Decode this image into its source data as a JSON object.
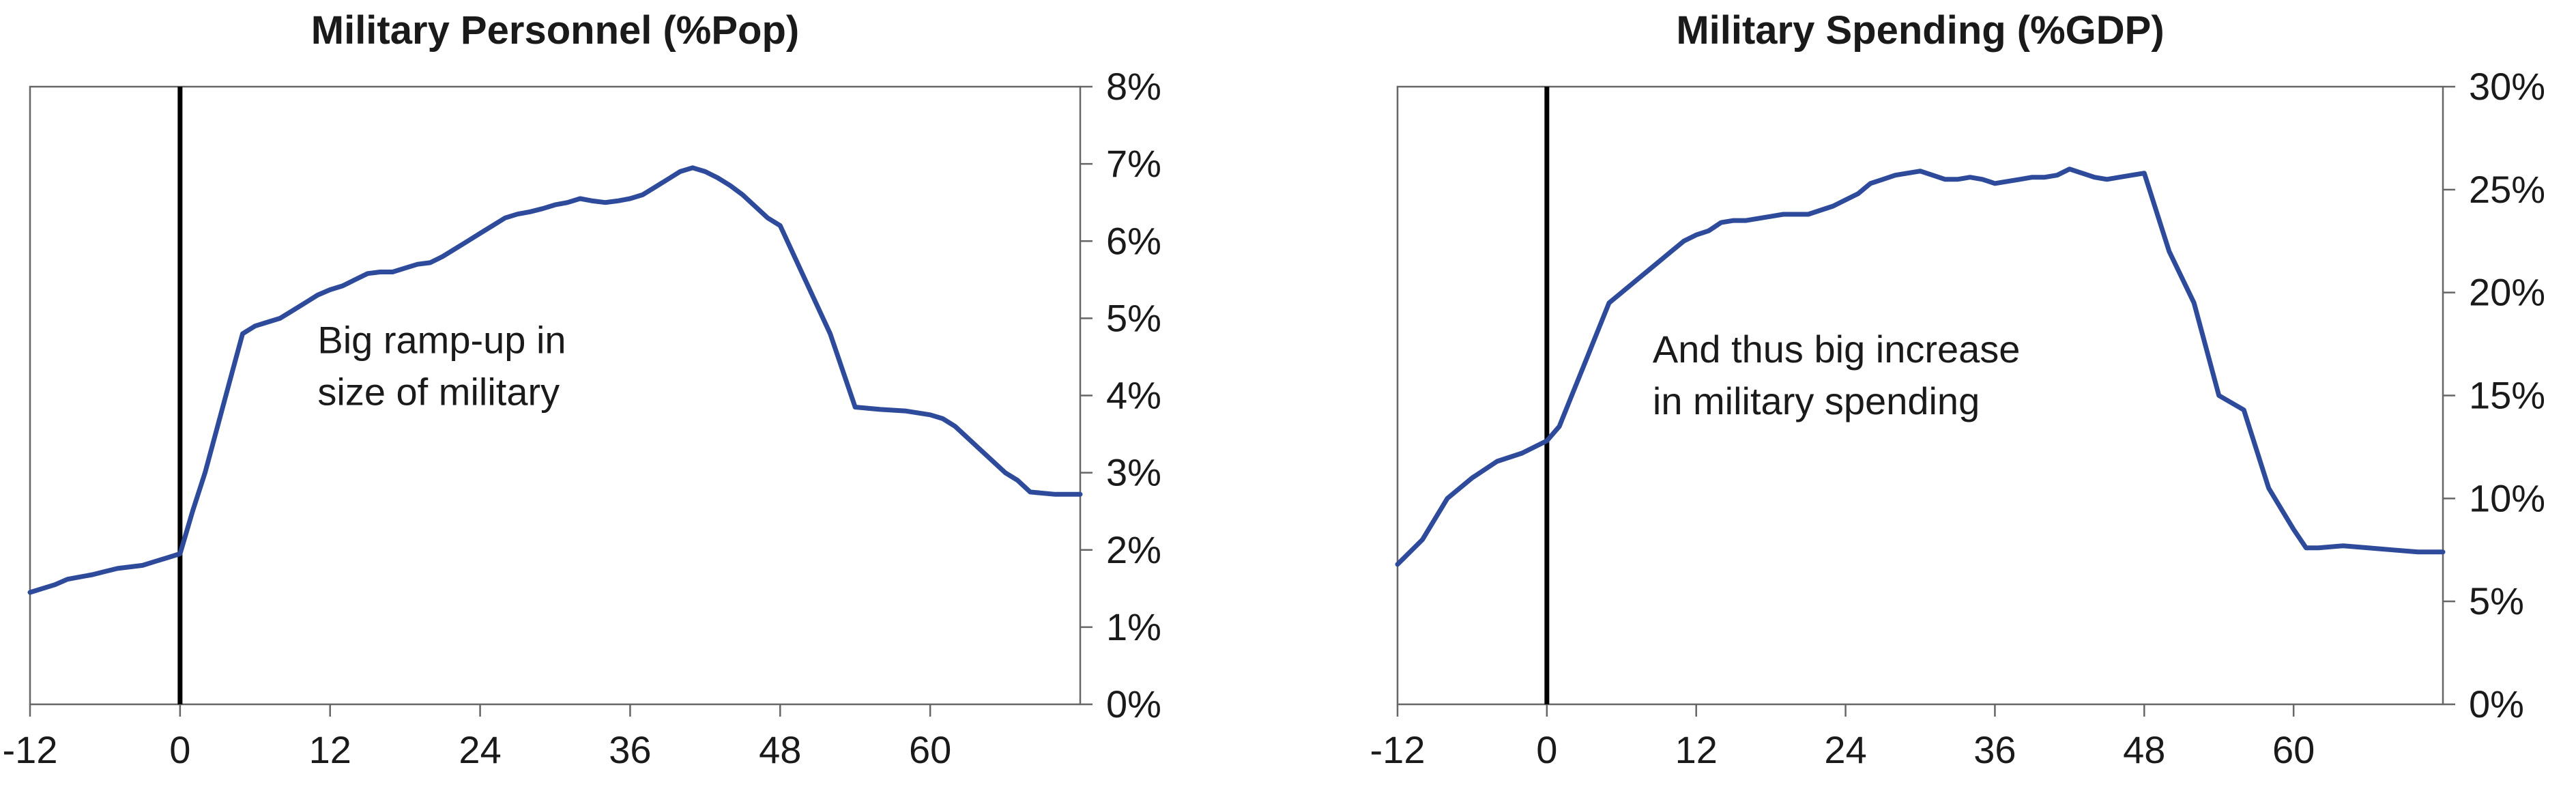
{
  "colors": {
    "series": "#2E4A9A",
    "zero_line": "#000000",
    "frame": "#666666"
  },
  "chart_data": [
    {
      "type": "line",
      "title": "Military Personnel (%Pop)",
      "xlabel": "",
      "ylabel": "",
      "xlim": [
        -12,
        72
      ],
      "ylim": [
        0,
        8
      ],
      "x_ticks": [
        -12,
        0,
        12,
        24,
        36,
        48,
        60
      ],
      "x_tick_labels": [
        "-12",
        "0",
        "12",
        "24",
        "36",
        "48",
        "60"
      ],
      "y_ticks": [
        0,
        1,
        2,
        3,
        4,
        5,
        6,
        7,
        8
      ],
      "y_tick_labels": [
        "0%",
        "1%",
        "2%",
        "3%",
        "4%",
        "5%",
        "6%",
        "7%",
        "8%"
      ],
      "y_axis_side": "right",
      "vertical_marker_x": 0,
      "annotation": {
        "lines": [
          "Big ramp-up in",
          "size of military"
        ],
        "x": 11,
        "y": 4.55
      },
      "series": [
        {
          "x": [
            -12,
            -11,
            -10,
            -9,
            -8,
            -7,
            -6,
            -5,
            -4,
            -3,
            -2,
            -1,
            0,
            1,
            2,
            3,
            4,
            5,
            6,
            7,
            8,
            9,
            10,
            11,
            12,
            13,
            14,
            15,
            16,
            17,
            18,
            19,
            20,
            21,
            22,
            23,
            24,
            25,
            26,
            27,
            28,
            29,
            30,
            31,
            32,
            33,
            34,
            35,
            36,
            37,
            38,
            39,
            40,
            41,
            42,
            43,
            44,
            45,
            46,
            47,
            48,
            50,
            52,
            54,
            56,
            58,
            60,
            61,
            62,
            64,
            66,
            67,
            68,
            70,
            72
          ],
          "values": [
            1.45,
            1.5,
            1.55,
            1.62,
            1.65,
            1.68,
            1.72,
            1.76,
            1.78,
            1.8,
            1.85,
            1.9,
            1.95,
            2.5,
            3.0,
            3.6,
            4.2,
            4.8,
            4.9,
            4.95,
            5.0,
            5.1,
            5.2,
            5.3,
            5.37,
            5.42,
            5.5,
            5.58,
            5.6,
            5.6,
            5.65,
            5.7,
            5.72,
            5.8,
            5.9,
            6.0,
            6.1,
            6.2,
            6.3,
            6.35,
            6.38,
            6.42,
            6.47,
            6.5,
            6.55,
            6.52,
            6.5,
            6.52,
            6.55,
            6.6,
            6.7,
            6.8,
            6.9,
            6.95,
            6.9,
            6.82,
            6.72,
            6.6,
            6.45,
            6.3,
            6.2,
            5.5,
            4.8,
            3.85,
            3.82,
            3.8,
            3.75,
            3.7,
            3.6,
            3.3,
            3.0,
            2.9,
            2.75,
            2.72,
            2.72
          ]
        }
      ]
    },
    {
      "type": "line",
      "title": "Military Spending (%GDP)",
      "xlabel": "",
      "ylabel": "",
      "xlim": [
        -12,
        72
      ],
      "ylim": [
        0,
        30
      ],
      "x_ticks": [
        -12,
        0,
        12,
        24,
        36,
        48,
        60
      ],
      "x_tick_labels": [
        "-12",
        "0",
        "12",
        "24",
        "36",
        "48",
        "60"
      ],
      "y_ticks": [
        0,
        5,
        10,
        15,
        20,
        25,
        30
      ],
      "y_tick_labels": [
        "0%",
        "5%",
        "10%",
        "15%",
        "20%",
        "25%",
        "30%"
      ],
      "y_axis_side": "right",
      "vertical_marker_x": 0,
      "annotation": {
        "lines": [
          "And thus big increase",
          "in military spending"
        ],
        "x": 8.5,
        "y": 16.6
      },
      "series": [
        {
          "x": [
            -12,
            -10,
            -8,
            -6,
            -4,
            -2,
            0,
            1,
            2,
            3,
            4,
            5,
            6,
            8,
            9,
            10,
            11,
            12,
            13,
            14,
            15,
            16,
            17,
            18,
            19,
            20,
            21,
            22,
            23,
            24,
            25,
            26,
            27,
            28,
            29,
            30,
            31,
            32,
            33,
            34,
            35,
            36,
            37,
            38,
            39,
            40,
            41,
            42,
            43,
            44,
            45,
            46,
            47,
            48,
            50,
            52,
            54,
            56,
            58,
            60,
            61,
            62,
            64,
            66,
            68,
            70,
            72
          ],
          "values": [
            6.8,
            8.0,
            10.0,
            11.0,
            11.8,
            12.2,
            12.8,
            13.5,
            15.0,
            16.5,
            18.0,
            19.5,
            20.0,
            21.0,
            21.5,
            22.0,
            22.5,
            22.8,
            23.0,
            23.4,
            23.5,
            23.5,
            23.6,
            23.7,
            23.8,
            23.8,
            23.8,
            24.0,
            24.2,
            24.5,
            24.8,
            25.3,
            25.5,
            25.7,
            25.8,
            25.9,
            25.7,
            25.5,
            25.5,
            25.6,
            25.5,
            25.3,
            25.4,
            25.5,
            25.6,
            25.6,
            25.7,
            26.0,
            25.8,
            25.6,
            25.5,
            25.6,
            25.7,
            25.8,
            22.0,
            19.5,
            15.0,
            14.3,
            10.5,
            8.5,
            7.6,
            7.6,
            7.7,
            7.6,
            7.5,
            7.4,
            7.4
          ]
        }
      ]
    }
  ]
}
